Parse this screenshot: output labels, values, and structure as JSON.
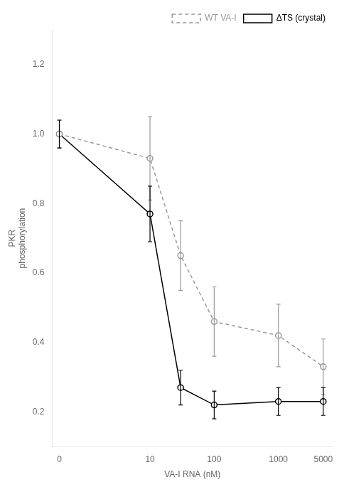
{
  "chart_data": {
    "type": "line",
    "xlabel": "VA-I RNA (nM)",
    "ylabel": "PKR\nphosphorylation",
    "x": [
      0,
      10,
      30,
      100,
      1000,
      5000
    ],
    "series": [
      {
        "name": "WT VA-I",
        "color": "#999999",
        "marker": "o",
        "line_style": "dashed",
        "values": [
          1.0,
          0.93,
          0.65,
          0.46,
          0.42,
          0.33
        ],
        "errors": [
          0.04,
          0.12,
          0.1,
          0.1,
          0.09,
          0.08
        ]
      },
      {
        "name": "ΔTS (crystal)",
        "color": "#000000",
        "marker": "o",
        "line_style": "solid",
        "values": [
          1.0,
          0.77,
          0.27,
          0.22,
          0.23,
          0.23
        ],
        "errors": [
          0.04,
          0.08,
          0.05,
          0.04,
          0.04,
          0.04
        ]
      }
    ],
    "log": "x",
    "xlim": [
      -0.5,
      7000
    ],
    "xticks": [
      0,
      10,
      100,
      1000,
      5000
    ],
    "ylim": [
      0.1,
      1.3
    ],
    "yticks": [
      0.2,
      0.4,
      0.6,
      0.8,
      {
        "value": 1.0,
        "label": "1.0"
      },
      1.2
    ],
    "legend": "upper right",
    "grid": false
  }
}
